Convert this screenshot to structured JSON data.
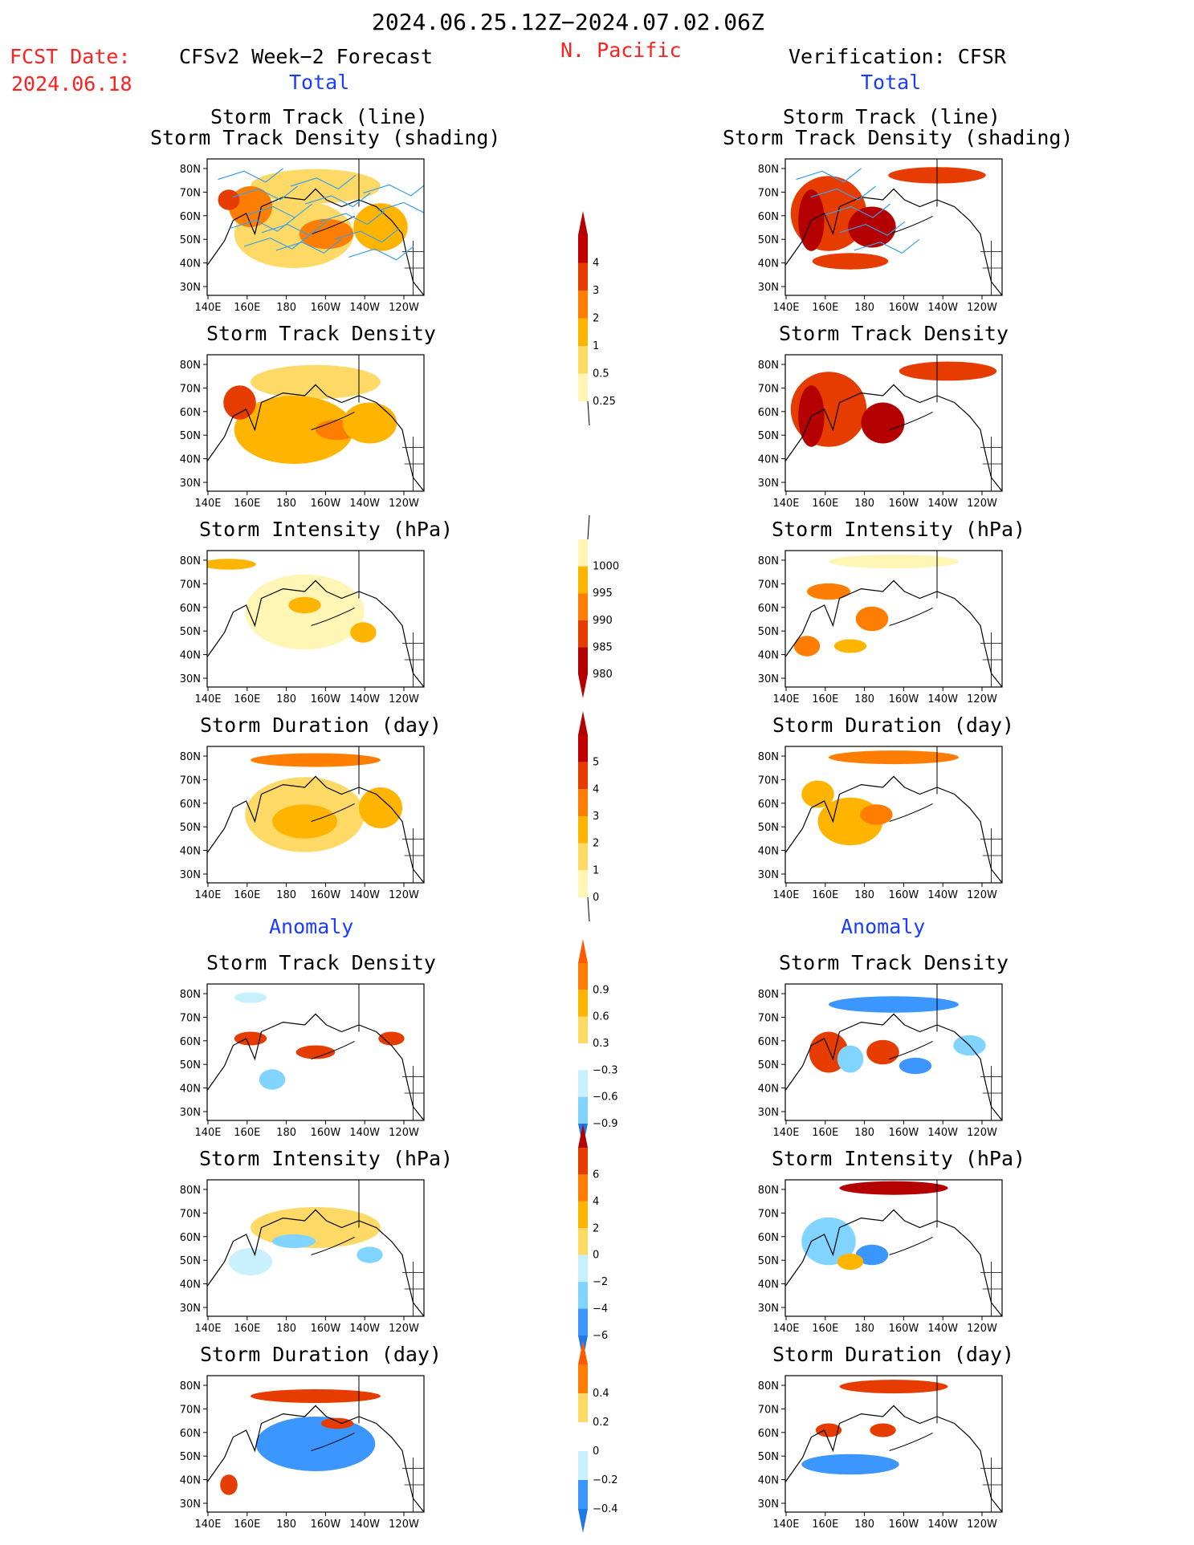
{
  "header": {
    "period": "2024.06.25.12Z−2024.07.02.06Z",
    "region": "N. Pacific",
    "fcst_label": "FCST Date:",
    "fcst_date": "2024.06.18",
    "left_title": "CFSv2 Week−2 Forecast",
    "right_title": "Verification: CFSR",
    "total_label": "Total",
    "anomaly_label": "Anomaly"
  },
  "axes": {
    "lon_ticks": [
      "140E",
      "160E",
      "180",
      "160W",
      "140W",
      "120W"
    ],
    "lat_ticks": [
      "80N",
      "70N",
      "60N",
      "50N",
      "40N",
      "30N"
    ]
  },
  "panels": {
    "track_line_title_1": "Storm Track (line)",
    "track_line_title_2": "Storm Track Density (shading)",
    "track_density": "Storm Track Density",
    "intensity": "Storm Intensity (hPa)",
    "duration": "Storm Duration (day)"
  },
  "colorbars": {
    "density": [
      "4",
      "3",
      "2",
      "1",
      "0.5",
      "0.25"
    ],
    "intensity": [
      "1000",
      "995",
      "990",
      "985",
      "980"
    ],
    "duration": [
      "5",
      "4",
      "3",
      "2",
      "1",
      "0"
    ],
    "density_anom": [
      "0.9",
      "0.6",
      "0.3",
      "−0.3",
      "−0.6",
      "−0.9"
    ],
    "intensity_anom": [
      "6",
      "4",
      "2",
      "0",
      "−2",
      "−4",
      "−6"
    ],
    "duration_anom": [
      "0.4",
      "0.2",
      "0",
      "−0.2",
      "−0.4"
    ]
  },
  "colors": {
    "warm": [
      "#fff5b4",
      "#ffd966",
      "#ffb400",
      "#ff7d00",
      "#e63c00",
      "#b40000"
    ],
    "cool": [
      "#c8f0ff",
      "#80d4ff",
      "#3c96ff",
      "#1e5adc"
    ],
    "track_line": "#3ca0e6"
  }
}
